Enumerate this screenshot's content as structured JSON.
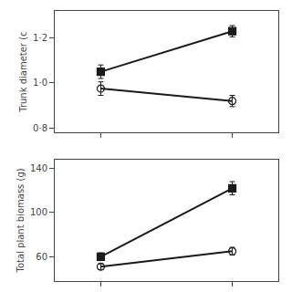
{
  "chart_data": [
    {
      "type": "line",
      "ylabel": "Trunk diameter (c",
      "x": [
        1,
        2
      ],
      "series": [
        {
          "color": "#1a1a1a",
          "marker": "square",
          "line_style": "solid",
          "values": [
            1.05,
            1.23
          ],
          "yerr": [
            0.03,
            0.025
          ]
        },
        {
          "color": "#1a1a1a",
          "marker": "circle-open",
          "line_style": "solid",
          "values": [
            0.975,
            0.92
          ],
          "yerr": [
            0.03,
            0.025
          ]
        }
      ],
      "xlim": [
        0.65,
        2.35
      ],
      "xticks": [
        1,
        2
      ],
      "ylim": [
        0.78,
        1.32
      ],
      "yticks": [
        {
          "value": 0.8,
          "label": "0·8"
        },
        {
          "value": 1.0,
          "label": "1·0"
        },
        {
          "value": 1.2,
          "label": "1·2"
        }
      ],
      "tick_labels": "y",
      "grid": false
    },
    {
      "type": "line",
      "ylabel": "Total plant biomass (g)",
      "x": [
        1,
        2
      ],
      "series": [
        {
          "color": "#1a1a1a",
          "marker": "square",
          "line_style": "solid",
          "values": [
            60,
            122
          ],
          "yerr": [
            3.5,
            6
          ]
        },
        {
          "color": "#1a1a1a",
          "marker": "circle-open",
          "line_style": "solid",
          "values": [
            51,
            65
          ],
          "yerr": [
            2.5,
            3.5
          ]
        }
      ],
      "xlim": [
        0.65,
        2.35
      ],
      "xticks": [
        1,
        2
      ],
      "ylim": [
        38,
        148
      ],
      "yticks": [
        60,
        100,
        140
      ],
      "tick_labels": "y",
      "grid": false
    }
  ]
}
